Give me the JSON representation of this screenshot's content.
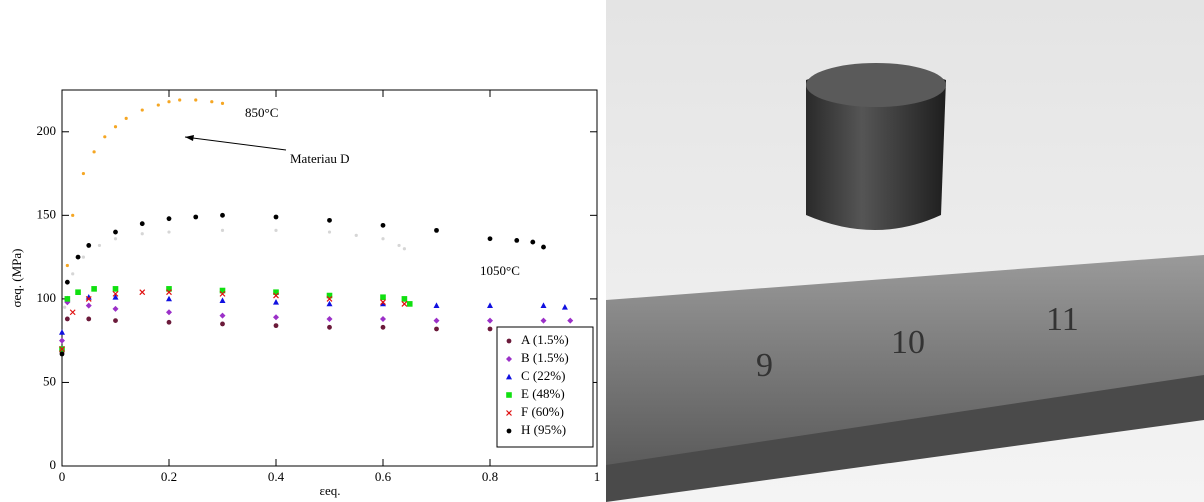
{
  "chart_data": {
    "type": "scatter",
    "x_label": "εeq.",
    "y_label": "σeq. (MPa)",
    "xlim": [
      0,
      1
    ],
    "ylim": [
      0,
      225
    ],
    "xticks": [
      0,
      0.2,
      0.4,
      0.6,
      0.8,
      1
    ],
    "yticks": [
      0,
      50,
      100,
      150,
      200
    ],
    "legend": "lower right",
    "annotations": [
      "850°C",
      "Materiau D",
      "1050°C"
    ],
    "series": [
      {
        "color": "#f5a623",
        "marker": "dot",
        "x": [
          0.002,
          0.01,
          0.02,
          0.04,
          0.06,
          0.08,
          0.1,
          0.12,
          0.15,
          0.18,
          0.2,
          0.22,
          0.25,
          0.28,
          0.3
        ],
        "values": [
          70,
          120,
          150,
          175,
          188,
          197,
          203,
          208,
          213,
          216,
          218,
          219,
          219,
          218,
          217
        ]
      },
      {
        "color": "#d6d6d6",
        "marker": "dot",
        "x": [
          0.005,
          0.02,
          0.04,
          0.07,
          0.1,
          0.15,
          0.2,
          0.3,
          0.4,
          0.5,
          0.55,
          0.6,
          0.63,
          0.64
        ],
        "values": [
          95,
          115,
          125,
          132,
          136,
          139,
          140,
          141,
          141,
          140,
          138,
          136,
          132,
          130
        ]
      },
      {
        "name": "A (1.5%)",
        "color": "#6b1a3a",
        "marker": "circle",
        "x": [
          0,
          0.01,
          0.05,
          0.1,
          0.2,
          0.3,
          0.4,
          0.5,
          0.6,
          0.7,
          0.8,
          0.9,
          0.94
        ],
        "values": [
          68,
          88,
          88,
          87,
          86,
          85,
          84,
          83,
          83,
          82,
          82,
          81,
          81
        ]
      },
      {
        "name": "B (1.5%)",
        "color": "#9b30c8",
        "marker": "diamond",
        "x": [
          0,
          0.01,
          0.05,
          0.1,
          0.2,
          0.3,
          0.4,
          0.5,
          0.6,
          0.7,
          0.8,
          0.9,
          0.95
        ],
        "values": [
          75,
          98,
          96,
          94,
          92,
          90,
          89,
          88,
          88,
          87,
          87,
          87,
          87
        ]
      },
      {
        "name": "C (22%)",
        "color": "#1010e0",
        "marker": "triangle",
        "x": [
          0,
          0.01,
          0.05,
          0.1,
          0.2,
          0.3,
          0.4,
          0.5,
          0.6,
          0.7,
          0.8,
          0.9,
          0.94
        ],
        "values": [
          80,
          100,
          101,
          101,
          100,
          99,
          98,
          97,
          97,
          96,
          96,
          96,
          95
        ]
      },
      {
        "name": "E (48%)",
        "color": "#10e010",
        "marker": "square",
        "x": [
          0,
          0.01,
          0.03,
          0.06,
          0.1,
          0.2,
          0.3,
          0.4,
          0.5,
          0.6,
          0.64,
          0.65
        ],
        "values": [
          70,
          100,
          104,
          106,
          106,
          106,
          105,
          104,
          102,
          101,
          100,
          97
        ]
      },
      {
        "name": "F (60%)",
        "color": "#e01010",
        "marker": "x",
        "x": [
          0,
          0.02,
          0.05,
          0.1,
          0.15,
          0.2,
          0.3,
          0.4,
          0.5,
          0.6,
          0.64
        ],
        "values": [
          70,
          92,
          100,
          103,
          104,
          104,
          103,
          102,
          100,
          98,
          97
        ]
      },
      {
        "name": "H (95%)",
        "color": "#000000",
        "marker": "circle",
        "x": [
          0,
          0.01,
          0.03,
          0.05,
          0.1,
          0.15,
          0.2,
          0.25,
          0.3,
          0.4,
          0.5,
          0.6,
          0.7,
          0.8,
          0.85,
          0.88,
          0.9
        ],
        "values": [
          67,
          110,
          125,
          132,
          140,
          145,
          148,
          149,
          150,
          149,
          147,
          144,
          141,
          136,
          135,
          134,
          131
        ]
      }
    ]
  },
  "photo": {
    "ruler_labels": [
      "9",
      "10",
      "11"
    ]
  }
}
